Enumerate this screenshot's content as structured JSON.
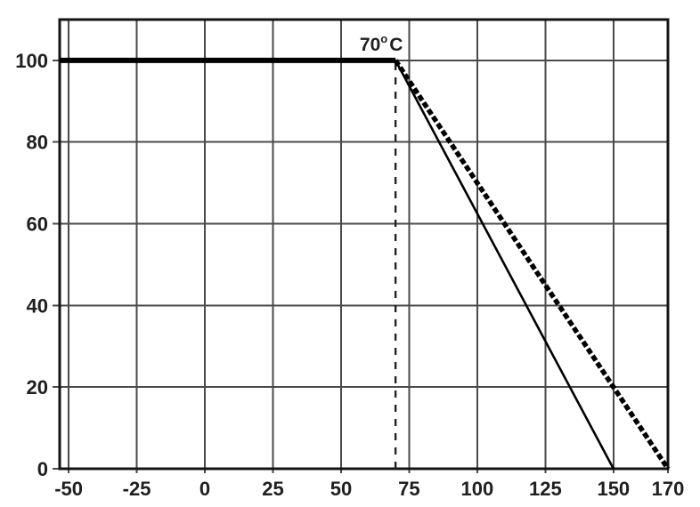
{
  "figure": {
    "background": "#ffffff",
    "colors": {
      "series_line": "#000000",
      "grid": "#4a4a4a",
      "border": "#141414",
      "text": "#1f1f1f",
      "dashed_guide": "#222222"
    }
  },
  "chart_data": {
    "type": "line",
    "title": "",
    "xlabel": "",
    "ylabel": "",
    "grid": true,
    "legend_position": "none",
    "xlim": [
      -53.3,
      170
    ],
    "ylim": [
      0,
      110
    ],
    "x_ticks": [
      -50,
      -25,
      0,
      25,
      50,
      75,
      100,
      125,
      150,
      170
    ],
    "x_tick_labels": [
      "-50",
      "-25",
      "0",
      "25",
      "50",
      "75",
      "100",
      "125",
      "150",
      "170"
    ],
    "y_ticks": [
      0,
      20,
      40,
      60,
      80,
      100
    ],
    "y_tick_labels": [
      "0",
      "20",
      "40",
      "60",
      "80",
      "100"
    ],
    "series": [
      {
        "name": "full-load-line",
        "style": "thick-solid",
        "points": [
          [
            -53.3,
            100
          ],
          [
            70,
            100
          ]
        ]
      },
      {
        "name": "derating-to-170",
        "style": "thick-dashed",
        "points": [
          [
            70,
            100
          ],
          [
            170,
            0
          ]
        ]
      },
      {
        "name": "derating-to-150",
        "style": "thin-solid",
        "points": [
          [
            70,
            100
          ],
          [
            150,
            0
          ]
        ]
      }
    ],
    "annotations": [
      {
        "type": "vline",
        "style": "dashed",
        "x": 70,
        "y1": 0,
        "y2": 100
      },
      {
        "type": "label",
        "text": "70°C",
        "x": 70,
        "y": 103
      }
    ]
  }
}
